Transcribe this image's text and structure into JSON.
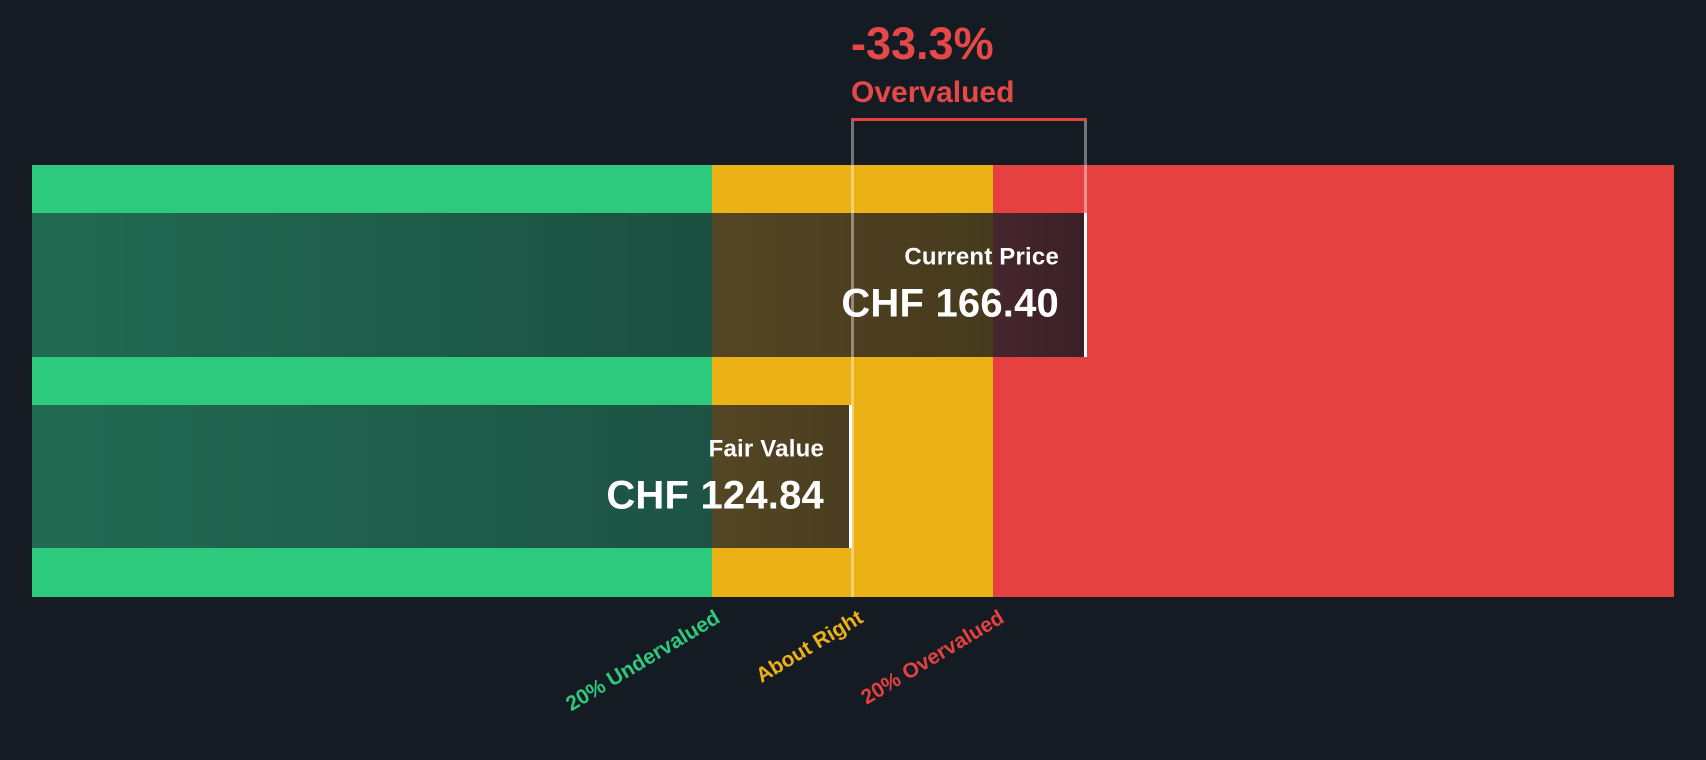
{
  "chart_data": {
    "type": "bar",
    "orientation": "horizontal",
    "currency": "CHF",
    "series": [
      {
        "name": "Current Price",
        "value": 166.4,
        "value_label": "CHF 166.40"
      },
      {
        "name": "Fair Value",
        "value": 124.84,
        "value_label": "CHF 124.84"
      }
    ],
    "discount": {
      "percent": -33.3,
      "text": "-33.3%",
      "verdict": "Overvalued"
    },
    "zones": [
      {
        "label": "20% Undervalued",
        "max_price": 99.87,
        "color": "#2dca7e"
      },
      {
        "label": "About Right",
        "min_price": 99.87,
        "max_price": 149.81,
        "color": "#ecb215"
      },
      {
        "label": "20% Overvalued",
        "min_price": 149.81,
        "color": "#e64141"
      }
    ],
    "legend_position": "none",
    "grid": false
  },
  "annotation": {
    "pct": "-33.3%",
    "verdict": "Overvalued"
  },
  "current_price": {
    "label": "Current Price",
    "value": "CHF 166.40"
  },
  "fair_value": {
    "label": "Fair Value",
    "value": "CHF 124.84"
  },
  "axis_labels": {
    "undervalued": "20% Undervalued",
    "about_right": "About Right",
    "overvalued": "20% Overvalued"
  },
  "colors": {
    "background": "#151b23",
    "undervalued_zone": "#2dca7e",
    "about_right_zone": "#ecb215",
    "overvalued_zone": "#e64141",
    "annotation_text": "#e64848",
    "bar_label_text": "#ffffff",
    "marker_line": "#ffffff"
  }
}
